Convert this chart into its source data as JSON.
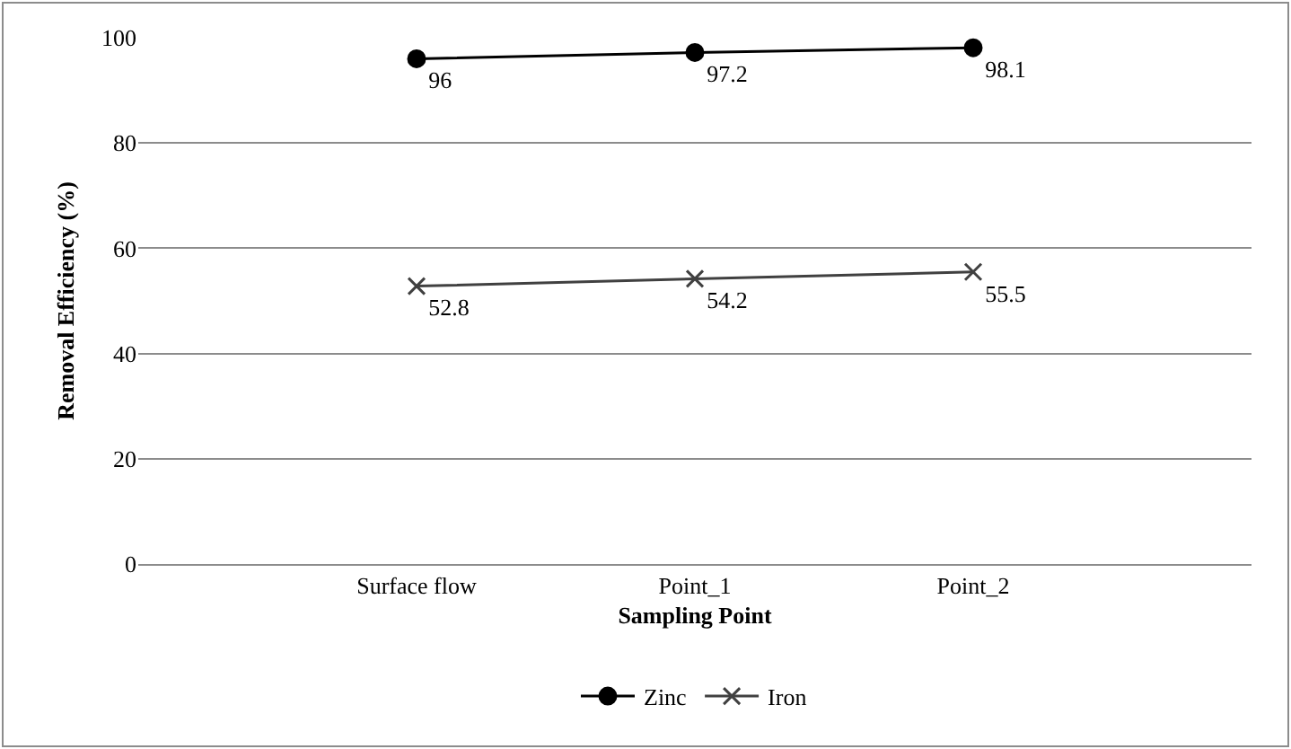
{
  "chart_data": {
    "type": "line",
    "xlabel": "Sampling Point",
    "ylabel": "Removal Efficiency (%)",
    "categories": [
      "Surface flow",
      "Point_1",
      "Point_2"
    ],
    "series": [
      {
        "name": "Zinc",
        "color": "#000000",
        "marker": "circle",
        "values": [
          96,
          97.2,
          98.1
        ]
      },
      {
        "name": "Iron",
        "color": "#404040",
        "marker": "cross",
        "values": [
          52.8,
          54.2,
          55.5
        ]
      }
    ],
    "ylim": [
      0,
      100
    ],
    "yticks": [
      0,
      20,
      40,
      60,
      80,
      100
    ],
    "grid": "y",
    "legend": "bottom",
    "data_labels": true,
    "line_style": "solid"
  }
}
